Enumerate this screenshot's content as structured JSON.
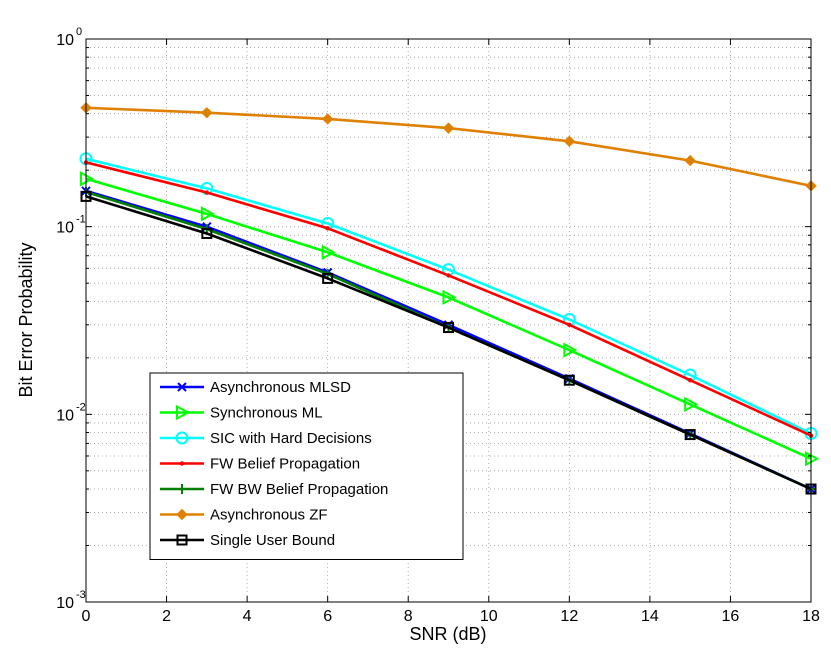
{
  "chart_data": {
    "type": "line",
    "title": "",
    "xlabel": "SNR (dB)",
    "ylabel": "Bit Error Probability",
    "yscale": "log",
    "xlim": [
      0,
      18
    ],
    "ylim": [
      0.001,
      1
    ],
    "grid": true,
    "legend_position": "bottom-left",
    "x_ticks": [
      "0",
      "2",
      "4",
      "6",
      "8",
      "10",
      "12",
      "14",
      "16",
      "18"
    ],
    "y_ticks": [
      {
        "base": "10",
        "exp": "0"
      },
      {
        "base": "10",
        "exp": "-1"
      },
      {
        "base": "10",
        "exp": "-2"
      },
      {
        "base": "10",
        "exp": "-3"
      }
    ],
    "x": [
      0,
      3,
      6,
      9,
      12,
      15,
      18
    ],
    "series": [
      {
        "name": "Asynchronous MLSD",
        "color": "#0000ff",
        "marker": "x",
        "values": [
          0.155,
          0.1,
          0.057,
          0.03,
          0.0155,
          0.0079,
          0.004
        ]
      },
      {
        "name": "Synchronous ML",
        "color": "#00ff00",
        "marker": "triangle-right",
        "values": [
          0.18,
          0.117,
          0.073,
          0.042,
          0.022,
          0.0113,
          0.0058
        ]
      },
      {
        "name": "SIC with Hard Decisions",
        "color": "#00ffff",
        "marker": "circle",
        "values": [
          0.23,
          0.16,
          0.104,
          0.059,
          0.032,
          0.0162,
          0.0079
        ]
      },
      {
        "name": "FW Belief Propagation",
        "color": "#ff0000",
        "marker": "point",
        "values": [
          0.22,
          0.152,
          0.098,
          0.055,
          0.03,
          0.0152,
          0.0077
        ]
      },
      {
        "name": "FW BW Belief Propagation",
        "color": "#008000",
        "marker": "plus",
        "values": [
          0.153,
          0.097,
          0.056,
          0.029,
          0.0152,
          0.0078,
          0.004
        ]
      },
      {
        "name": "Asynchronous ZF",
        "color": "#e08000",
        "marker": "diamond",
        "values": [
          0.43,
          0.405,
          0.375,
          0.335,
          0.285,
          0.225,
          0.165
        ]
      },
      {
        "name": "Single User Bound",
        "color": "#000000",
        "marker": "square",
        "values": [
          0.145,
          0.092,
          0.053,
          0.029,
          0.0152,
          0.0078,
          0.004
        ]
      }
    ]
  }
}
